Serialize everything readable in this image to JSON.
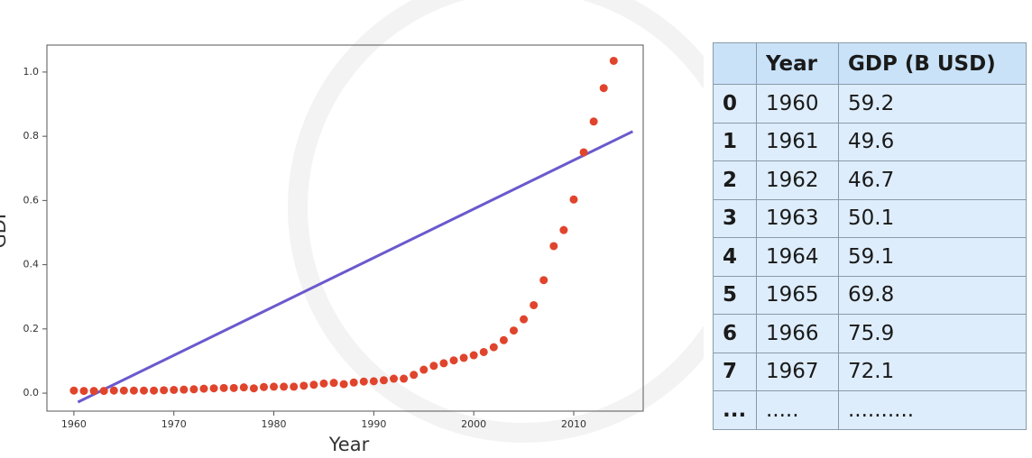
{
  "chart_data": {
    "type": "scatter",
    "xlabel": "Year",
    "ylabel": "GDP",
    "x": [
      1960,
      1961,
      1962,
      1963,
      1964,
      1965,
      1966,
      1967,
      1968,
      1969,
      1970,
      1971,
      1972,
      1973,
      1974,
      1975,
      1976,
      1977,
      1978,
      1979,
      1980,
      1981,
      1982,
      1983,
      1984,
      1985,
      1986,
      1987,
      1988,
      1989,
      1990,
      1991,
      1992,
      1993,
      1994,
      1995,
      1996,
      1997,
      1998,
      1999,
      2000,
      2001,
      2002,
      2003,
      2004,
      2005,
      2006,
      2007,
      2008,
      2009,
      2010,
      2011,
      2012,
      2013,
      2014
    ],
    "values": [
      0.008,
      0.007,
      0.007,
      0.007,
      0.008,
      0.008,
      0.008,
      0.008,
      0.008,
      0.009,
      0.01,
      0.011,
      0.012,
      0.014,
      0.015,
      0.016,
      0.016,
      0.018,
      0.015,
      0.019,
      0.02,
      0.02,
      0.02,
      0.023,
      0.026,
      0.03,
      0.032,
      0.028,
      0.033,
      0.036,
      0.037,
      0.04,
      0.045,
      0.045,
      0.057,
      0.073,
      0.085,
      0.093,
      0.102,
      0.11,
      0.118,
      0.128,
      0.143,
      0.165,
      0.195,
      0.23,
      0.274,
      0.352,
      0.458,
      0.508,
      0.603,
      0.75,
      0.846,
      0.95,
      1.035
    ],
    "color": "#e0442c",
    "fit_line": {
      "x": [
        1960.4,
        2015.9
      ],
      "values": [
        -0.028,
        0.815
      ],
      "color": "#6a5acd"
    },
    "xlim": [
      1957.3,
      2016.95
    ],
    "ylim": [
      -0.056,
      1.084
    ],
    "xticks": [
      1960,
      1970,
      1980,
      1990,
      2000,
      2010
    ],
    "yticks": [
      {
        "value": 0,
        "label": "0.0"
      },
      0.2,
      0.4,
      0.6,
      0.8,
      {
        "value": 1,
        "label": "1.0"
      }
    ]
  },
  "table": {
    "header": [
      "Year",
      "GDP (B USD)"
    ],
    "rows": [
      [
        "0",
        "1960",
        "59.2"
      ],
      [
        "1",
        "1961",
        "49.6"
      ],
      [
        "2",
        "1962",
        "46.7"
      ],
      [
        "3",
        "1963",
        "50.1"
      ],
      [
        "4",
        "1964",
        "59.1"
      ],
      [
        "5",
        "1965",
        "69.8"
      ],
      [
        "6",
        "1966",
        "75.9"
      ],
      [
        "7",
        "1967",
        "72.1"
      ],
      [
        "...",
        ".....",
        ".........."
      ]
    ]
  }
}
